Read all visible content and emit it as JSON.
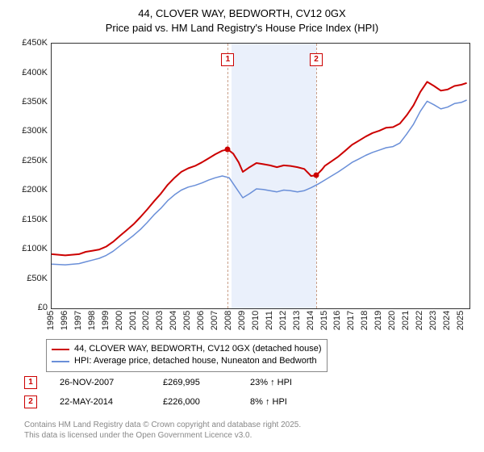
{
  "title_line1": "44, CLOVER WAY, BEDWORTH, CV12 0GX",
  "title_line2": "Price paid vs. HM Land Registry's House Price Index (HPI)",
  "chart": {
    "type": "line",
    "background_color": "#ffffff",
    "shaded_band_color": "#eaf0fb",
    "shaded_band": {
      "x_start": 2008.2,
      "x_end": 2014.4
    },
    "xlim": [
      1995,
      2025.6
    ],
    "ylim": [
      0,
      450000
    ],
    "ytick_step": 50000,
    "ytick_labels": [
      "£0",
      "£50K",
      "£100K",
      "£150K",
      "£200K",
      "£250K",
      "£300K",
      "£350K",
      "£400K",
      "£450K"
    ],
    "xticks": [
      1995,
      1996,
      1997,
      1998,
      1999,
      2000,
      2001,
      2002,
      2003,
      2004,
      2005,
      2006,
      2007,
      2008,
      2009,
      2010,
      2011,
      2012,
      2013,
      2014,
      2015,
      2016,
      2017,
      2018,
      2019,
      2020,
      2021,
      2022,
      2023,
      2024,
      2025
    ],
    "sale_line_color": "#c9a08a",
    "sale_box_border": "#cc0000",
    "sale_box_text": "#cc0000",
    "series": [
      {
        "name": "price_paid",
        "label": "44, CLOVER WAY, BEDWORTH, CV12 0GX (detached house)",
        "color": "#cc0000",
        "width": 2,
        "points": [
          [
            1995,
            92000
          ],
          [
            1996,
            90000
          ],
          [
            1997,
            92000
          ],
          [
            1997.5,
            96000
          ],
          [
            1998,
            98000
          ],
          [
            1998.5,
            100000
          ],
          [
            1999,
            105000
          ],
          [
            1999.5,
            113000
          ],
          [
            2000,
            123000
          ],
          [
            2000.5,
            133000
          ],
          [
            2001,
            143000
          ],
          [
            2001.5,
            155000
          ],
          [
            2002,
            168000
          ],
          [
            2002.5,
            182000
          ],
          [
            2003,
            195000
          ],
          [
            2003.5,
            210000
          ],
          [
            2004,
            222000
          ],
          [
            2004.5,
            232000
          ],
          [
            2005,
            238000
          ],
          [
            2005.5,
            242000
          ],
          [
            2006,
            248000
          ],
          [
            2006.5,
            255000
          ],
          [
            2007,
            262000
          ],
          [
            2007.5,
            268000
          ],
          [
            2007.9,
            270000
          ],
          [
            2008.3,
            263000
          ],
          [
            2008.7,
            248000
          ],
          [
            2009,
            232000
          ],
          [
            2009.5,
            240000
          ],
          [
            2010,
            247000
          ],
          [
            2010.5,
            245000
          ],
          [
            2011,
            243000
          ],
          [
            2011.5,
            240000
          ],
          [
            2012,
            243000
          ],
          [
            2012.5,
            242000
          ],
          [
            2013,
            240000
          ],
          [
            2013.5,
            237000
          ],
          [
            2014,
            225000
          ],
          [
            2014.38,
            226000
          ],
          [
            2014.8,
            236000
          ],
          [
            2015,
            242000
          ],
          [
            2015.5,
            250000
          ],
          [
            2016,
            258000
          ],
          [
            2016.5,
            268000
          ],
          [
            2017,
            278000
          ],
          [
            2017.5,
            285000
          ],
          [
            2018,
            292000
          ],
          [
            2018.5,
            298000
          ],
          [
            2019,
            302000
          ],
          [
            2019.5,
            307000
          ],
          [
            2020,
            308000
          ],
          [
            2020.5,
            314000
          ],
          [
            2021,
            328000
          ],
          [
            2021.5,
            345000
          ],
          [
            2022,
            368000
          ],
          [
            2022.5,
            385000
          ],
          [
            2023,
            378000
          ],
          [
            2023.5,
            370000
          ],
          [
            2024,
            372000
          ],
          [
            2024.5,
            378000
          ],
          [
            2025,
            380000
          ],
          [
            2025.4,
            383000
          ]
        ]
      },
      {
        "name": "hpi",
        "label": "HPI: Average price, detached house, Nuneaton and Bedworth",
        "color": "#6a8fd8",
        "width": 1.5,
        "points": [
          [
            1995,
            75000
          ],
          [
            1996,
            74000
          ],
          [
            1997,
            76000
          ],
          [
            1997.5,
            79000
          ],
          [
            1998,
            82000
          ],
          [
            1998.5,
            85000
          ],
          [
            1999,
            90000
          ],
          [
            1999.5,
            97000
          ],
          [
            2000,
            106000
          ],
          [
            2000.5,
            115000
          ],
          [
            2001,
            124000
          ],
          [
            2001.5,
            134000
          ],
          [
            2002,
            146000
          ],
          [
            2002.5,
            159000
          ],
          [
            2003,
            170000
          ],
          [
            2003.5,
            183000
          ],
          [
            2004,
            193000
          ],
          [
            2004.5,
            201000
          ],
          [
            2005,
            206000
          ],
          [
            2005.5,
            209000
          ],
          [
            2006,
            213000
          ],
          [
            2006.5,
            218000
          ],
          [
            2007,
            222000
          ],
          [
            2007.5,
            225000
          ],
          [
            2008,
            222000
          ],
          [
            2008.5,
            205000
          ],
          [
            2009,
            188000
          ],
          [
            2009.5,
            195000
          ],
          [
            2010,
            203000
          ],
          [
            2010.5,
            202000
          ],
          [
            2011,
            200000
          ],
          [
            2011.5,
            198000
          ],
          [
            2012,
            201000
          ],
          [
            2012.5,
            200000
          ],
          [
            2013,
            198000
          ],
          [
            2013.5,
            200000
          ],
          [
            2014,
            205000
          ],
          [
            2014.5,
            211000
          ],
          [
            2015,
            218000
          ],
          [
            2015.5,
            225000
          ],
          [
            2016,
            232000
          ],
          [
            2016.5,
            240000
          ],
          [
            2017,
            248000
          ],
          [
            2017.5,
            254000
          ],
          [
            2018,
            260000
          ],
          [
            2018.5,
            265000
          ],
          [
            2019,
            269000
          ],
          [
            2019.5,
            273000
          ],
          [
            2020,
            275000
          ],
          [
            2020.5,
            281000
          ],
          [
            2021,
            296000
          ],
          [
            2021.5,
            313000
          ],
          [
            2022,
            335000
          ],
          [
            2022.5,
            352000
          ],
          [
            2023,
            346000
          ],
          [
            2023.5,
            339000
          ],
          [
            2024,
            342000
          ],
          [
            2024.5,
            348000
          ],
          [
            2025,
            350000
          ],
          [
            2025.4,
            354000
          ]
        ]
      }
    ],
    "sale_markers": [
      {
        "n": "1",
        "x": 2007.9,
        "y": 270000,
        "color": "#cc0000"
      },
      {
        "n": "2",
        "x": 2014.38,
        "y": 226000,
        "color": "#cc0000"
      }
    ]
  },
  "legend": {
    "rows": [
      {
        "color": "#cc0000",
        "label": "44, CLOVER WAY, BEDWORTH, CV12 0GX (detached house)"
      },
      {
        "color": "#6a8fd8",
        "label": "HPI: Average price, detached house, Nuneaton and Bedworth"
      }
    ]
  },
  "sales": [
    {
      "n": "1",
      "date": "26-NOV-2007",
      "price": "£269,995",
      "delta": "23% ↑ HPI"
    },
    {
      "n": "2",
      "date": "22-MAY-2014",
      "price": "£226,000",
      "delta": "8% ↑ HPI"
    }
  ],
  "footer_line1": "Contains HM Land Registry data © Crown copyright and database right 2025.",
  "footer_line2": "This data is licensed under the Open Government Licence v3.0."
}
